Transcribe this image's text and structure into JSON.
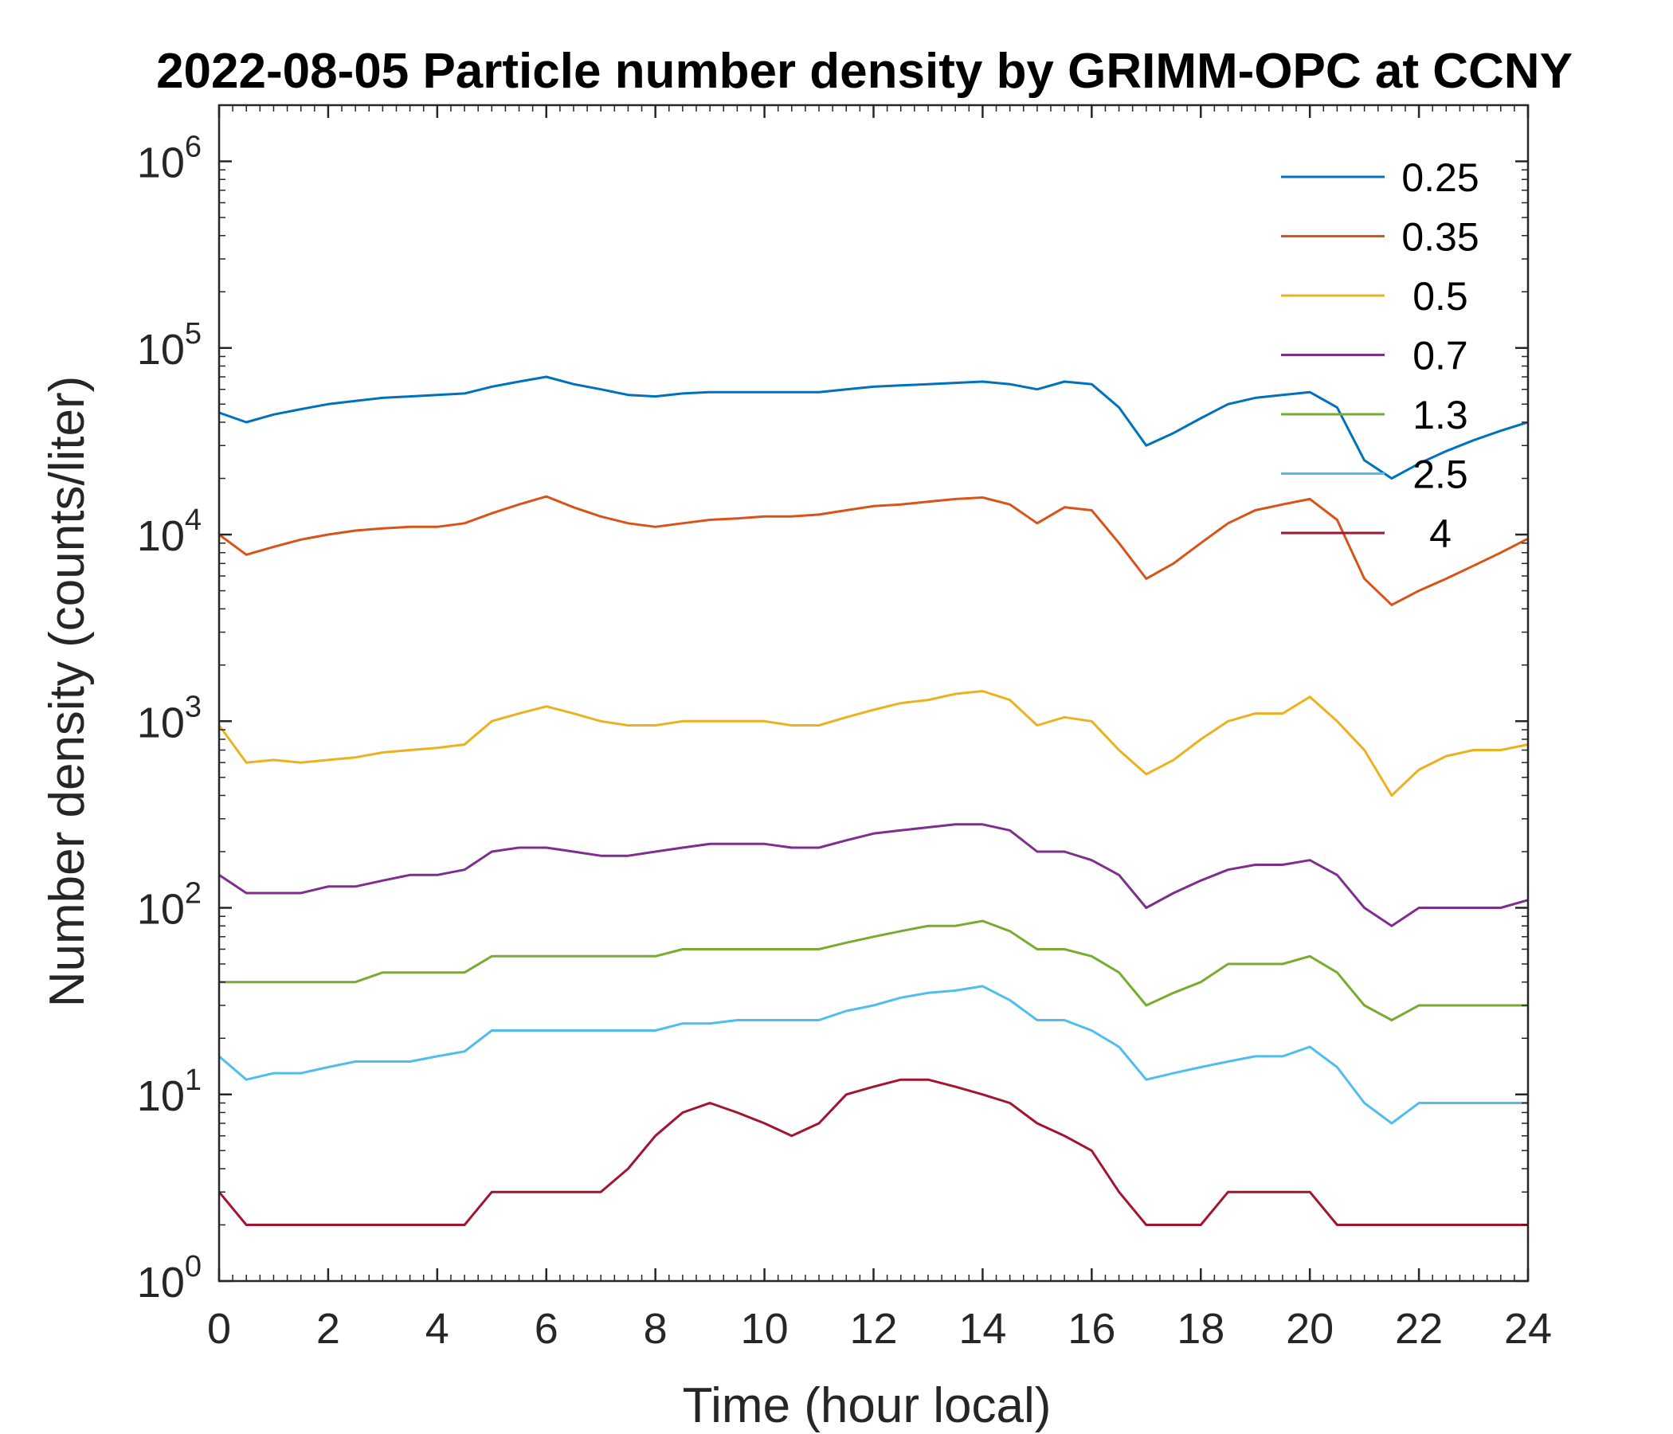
{
  "chart_data": {
    "type": "line",
    "title": "2022-08-05 Particle number density by GRIMM-OPC at CCNY",
    "xlabel": "Time (hour local)",
    "ylabel": "Number density (counts/liter)",
    "xlim": [
      0,
      24
    ],
    "ylim": [
      1,
      2000000
    ],
    "yscale": "log",
    "grid": false,
    "legend_position": "top-right",
    "x_ticks": [
      0,
      2,
      4,
      6,
      8,
      10,
      12,
      14,
      16,
      18,
      20,
      22,
      24
    ],
    "x_tick_labels": [
      "0",
      "2",
      "4",
      "6",
      "8",
      "10",
      "12",
      "14",
      "16",
      "18",
      "20",
      "22",
      "24"
    ],
    "y_ticks": [
      1,
      10,
      100,
      1000,
      10000,
      100000,
      1000000
    ],
    "y_tick_labels": [
      {
        "base": "10",
        "exp": "0"
      },
      {
        "base": "10",
        "exp": "1"
      },
      {
        "base": "10",
        "exp": "2"
      },
      {
        "base": "10",
        "exp": "3"
      },
      {
        "base": "10",
        "exp": "4"
      },
      {
        "base": "10",
        "exp": "5"
      },
      {
        "base": "10",
        "exp": "6"
      }
    ],
    "x": [
      0,
      0.5,
      1,
      1.5,
      2,
      2.5,
      3,
      3.5,
      4,
      4.5,
      5,
      5.5,
      6,
      6.5,
      7,
      7.5,
      8,
      8.5,
      9,
      9.5,
      10,
      10.5,
      11,
      11.5,
      12,
      12.5,
      13,
      13.5,
      14,
      14.5,
      15,
      15.5,
      16,
      16.5,
      17,
      17.5,
      18,
      18.5,
      19,
      19.5,
      20,
      20.5,
      21,
      21.5,
      22,
      22.5,
      23,
      23.5,
      24
    ],
    "series": [
      {
        "name": "0.25",
        "color": "#0072BD",
        "values": [
          45000,
          40000,
          44000,
          47000,
          50000,
          52000,
          54000,
          55000,
          56000,
          57000,
          62000,
          66000,
          70000,
          64000,
          60000,
          56000,
          55000,
          57000,
          58000,
          58000,
          58000,
          58000,
          58000,
          60000,
          62000,
          63000,
          64000,
          65000,
          66000,
          64000,
          60000,
          66000,
          64000,
          48000,
          30000,
          35000,
          42000,
          50000,
          54000,
          56000,
          58000,
          48000,
          25000,
          20000,
          24000,
          28000,
          32000,
          36000,
          40000
        ]
      },
      {
        "name": "0.35",
        "color": "#D95319",
        "values": [
          10000,
          7800,
          8600,
          9400,
          10000,
          10500,
          10800,
          11000,
          11000,
          11500,
          13000,
          14500,
          16000,
          14000,
          12500,
          11500,
          11000,
          11500,
          12000,
          12200,
          12500,
          12500,
          12800,
          13500,
          14200,
          14500,
          15000,
          15500,
          15800,
          14500,
          11500,
          14000,
          13500,
          9000,
          5800,
          7000,
          9000,
          11500,
          13500,
          14500,
          15500,
          12000,
          5800,
          4200,
          5000,
          5800,
          6800,
          8000,
          9500
        ]
      },
      {
        "name": "0.5",
        "color": "#EDB120",
        "values": [
          950,
          600,
          620,
          600,
          620,
          640,
          680,
          700,
          720,
          750,
          1000,
          1100,
          1200,
          1100,
          1000,
          950,
          950,
          1000,
          1000,
          1000,
          1000,
          950,
          950,
          1050,
          1150,
          1250,
          1300,
          1400,
          1450,
          1300,
          950,
          1050,
          1000,
          700,
          520,
          620,
          800,
          1000,
          1100,
          1100,
          1350,
          1000,
          700,
          400,
          550,
          650,
          700,
          700,
          750
        ]
      },
      {
        "name": "0.7",
        "color": "#7E2F8E",
        "values": [
          150,
          120,
          120,
          120,
          130,
          130,
          140,
          150,
          150,
          160,
          200,
          210,
          210,
          200,
          190,
          190,
          200,
          210,
          220,
          220,
          220,
          210,
          210,
          230,
          250,
          260,
          270,
          280,
          280,
          260,
          200,
          200,
          180,
          150,
          100,
          120,
          140,
          160,
          170,
          170,
          180,
          150,
          100,
          80,
          100,
          100,
          100,
          100,
          110
        ]
      },
      {
        "name": "1.3",
        "color": "#77AC30",
        "values": [
          40,
          40,
          40,
          40,
          40,
          40,
          45,
          45,
          45,
          45,
          55,
          55,
          55,
          55,
          55,
          55,
          55,
          60,
          60,
          60,
          60,
          60,
          60,
          65,
          70,
          75,
          80,
          80,
          85,
          75,
          60,
          60,
          55,
          45,
          30,
          35,
          40,
          50,
          50,
          50,
          55,
          45,
          30,
          25,
          30,
          30,
          30,
          30,
          30
        ]
      },
      {
        "name": "2.5",
        "color": "#4DBEEE",
        "values": [
          16,
          12,
          13,
          13,
          14,
          15,
          15,
          15,
          16,
          17,
          22,
          22,
          22,
          22,
          22,
          22,
          22,
          24,
          24,
          25,
          25,
          25,
          25,
          28,
          30,
          33,
          35,
          36,
          38,
          32,
          25,
          25,
          22,
          18,
          12,
          13,
          14,
          15,
          16,
          16,
          18,
          14,
          9,
          7,
          9,
          9,
          9,
          9,
          9
        ]
      },
      {
        "name": "4",
        "color": "#A2142F",
        "values": [
          3,
          2,
          2,
          2,
          2,
          2,
          2,
          2,
          2,
          2,
          3,
          3,
          3,
          3,
          3,
          4,
          6,
          8,
          9,
          8,
          7,
          6,
          7,
          10,
          11,
          12,
          12,
          11,
          10,
          9,
          7,
          6,
          5,
          3,
          2,
          2,
          2,
          3,
          3,
          3,
          3,
          2,
          2,
          2,
          2,
          2,
          2,
          2,
          2
        ]
      }
    ]
  }
}
